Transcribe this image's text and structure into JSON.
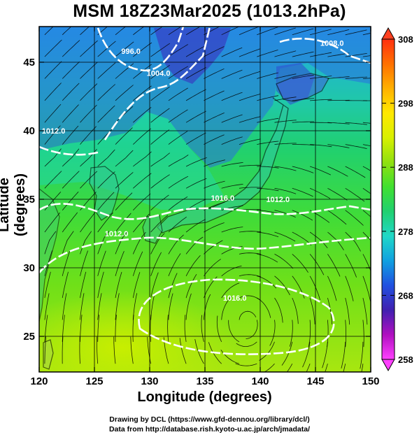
{
  "title": "MSM 18Z23Mar2025 (1013.2hPa)",
  "axes": {
    "xlabel": "Longitude (degrees)",
    "ylabel": "Latitude  (degrees)",
    "x_ticks": [
      "120",
      "125",
      "130",
      "135",
      "140",
      "145",
      "150"
    ],
    "y_ticks": [
      "25",
      "30",
      "35",
      "40",
      "45"
    ],
    "xlim": [
      120,
      150
    ],
    "ylim": [
      22.4,
      47.6
    ]
  },
  "colorbar": {
    "ticks": [
      "258",
      "268",
      "278",
      "288",
      "298",
      "308"
    ],
    "range": [
      258,
      308
    ],
    "colors": [
      "#ff40ff",
      "#b010c0",
      "#4020b0",
      "#2050e0",
      "#10a0e0",
      "#20d8c8",
      "#20d070",
      "#40e030",
      "#90e010",
      "#d8f000",
      "#ffe800",
      "#ffb000",
      "#ff7000",
      "#ff3010"
    ]
  },
  "contour_labels": [
    {
      "text": "996.0",
      "lon": 128.3,
      "lat": 45.6
    },
    {
      "text": "1004.0",
      "lon": 130.8,
      "lat": 44.0
    },
    {
      "text": "1008.0",
      "lon": 146.5,
      "lat": 46.2
    },
    {
      "text": "1016.0",
      "lon": 136.6,
      "lat": 34.9
    },
    {
      "text": "1012.0",
      "lon": 141.6,
      "lat": 34.8
    },
    {
      "text": "1012.0",
      "lon": 127.0,
      "lat": 32.3
    },
    {
      "text": "1016.0",
      "lon": 137.7,
      "lat": 27.6
    },
    {
      "text": "1012.0",
      "lon": 121.3,
      "lat": 39.8
    }
  ],
  "chart_data": {
    "type": "map",
    "field": "temperature with sea-level pressure contours and wind streamlines",
    "pressure_at_surface_hPa": 1013.2,
    "colorbar_range": [
      258,
      308
    ],
    "pressure_contours_hPa": [
      996.0,
      1004.0,
      1008.0,
      1012.0,
      1016.0
    ]
  },
  "credits": {
    "line1": "Drawing by DCL (https://www.gfd-dennou.org/library/dcl/)",
    "line2": "Data from http://database.rish.kyoto-u.ac.jp/arch/jmadata/"
  }
}
